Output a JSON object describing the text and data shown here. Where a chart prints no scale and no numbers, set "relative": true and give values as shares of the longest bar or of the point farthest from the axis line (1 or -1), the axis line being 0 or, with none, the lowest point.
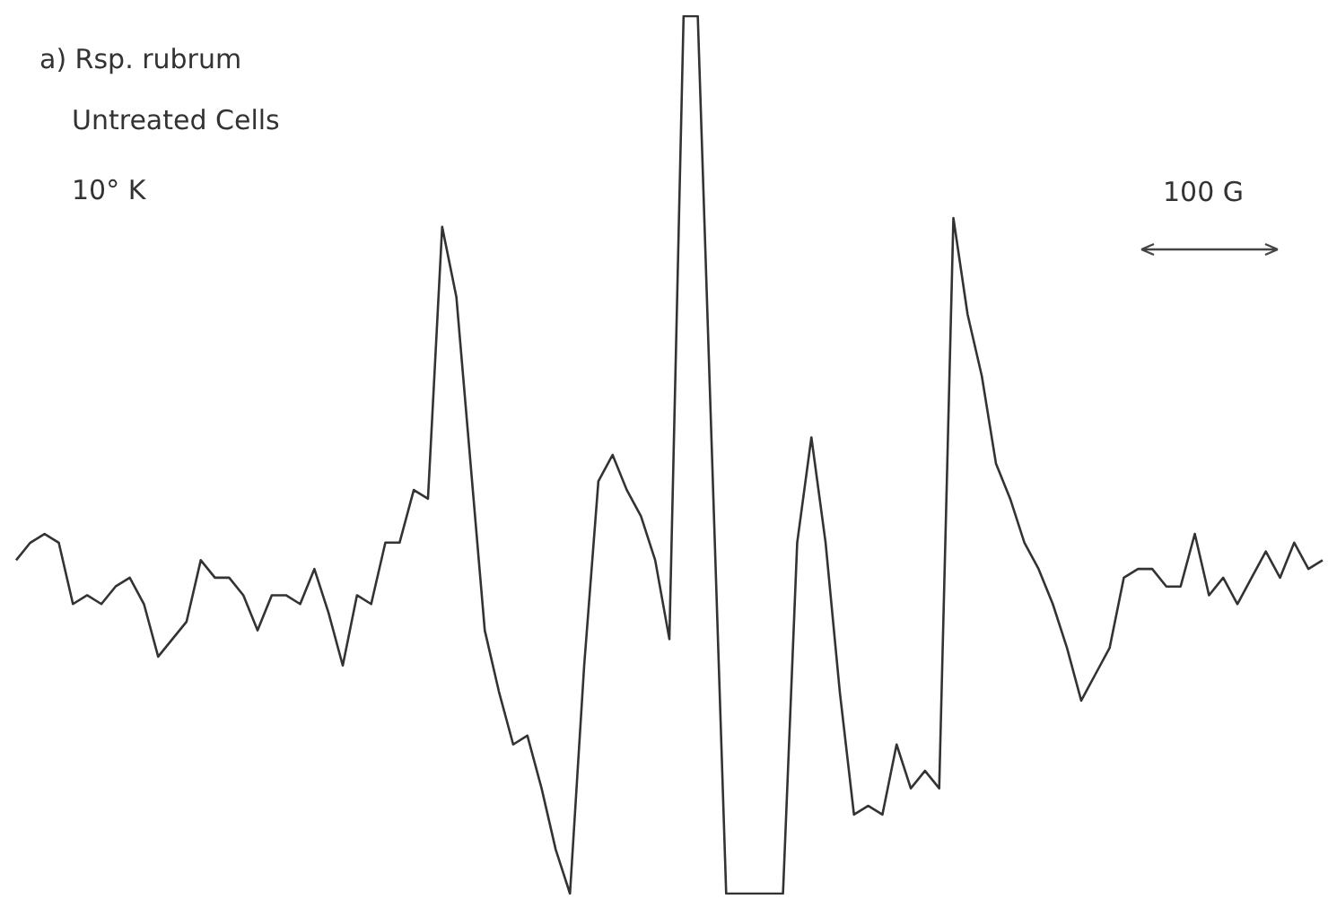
{
  "chart_data": {
    "type": "line",
    "relative": true,
    "color": "#333333",
    "marker": "none",
    "legend": false,
    "annotations": [
      "a) Rsp. rubrum",
      "Untreated Cells",
      "10° K",
      "100 G"
    ],
    "categories": [
      null,
      null,
      null,
      null,
      null,
      null,
      null,
      null,
      null,
      null,
      null,
      null,
      null,
      null,
      null,
      null,
      null,
      null,
      null,
      null,
      null,
      null,
      null,
      null,
      null,
      null,
      null,
      null,
      null,
      null,
      null,
      null,
      null,
      null,
      null,
      null,
      null,
      null,
      null,
      null,
      null,
      null,
      null,
      null,
      null,
      null,
      null,
      null,
      null,
      null,
      null,
      null,
      null,
      null,
      null,
      null,
      null,
      null,
      null,
      null,
      null,
      null,
      null,
      null,
      null,
      null,
      null,
      null,
      null,
      null,
      null,
      null,
      null,
      null,
      null,
      null,
      null,
      null,
      null,
      null,
      null,
      null,
      null,
      null,
      null,
      null,
      null,
      null,
      null,
      null,
      null,
      null,
      null
    ],
    "values": [
      0.38,
      0.4,
      0.41,
      0.4,
      0.33,
      0.34,
      0.33,
      0.35,
      0.36,
      0.33,
      0.27,
      0.29,
      0.31,
      0.38,
      0.36,
      0.36,
      0.34,
      0.3,
      0.34,
      0.34,
      0.33,
      0.37,
      0.32,
      0.26,
      0.34,
      0.33,
      0.4,
      0.4,
      0.46,
      0.45,
      0.76,
      0.68,
      0.49,
      0.3,
      0.23,
      0.17,
      0.18,
      0.12,
      0.05,
      0.0,
      0.26,
      0.47,
      0.5,
      0.46,
      0.43,
      0.38,
      0.29,
      1.0,
      1.0,
      0.5,
      0.0,
      0.0,
      0.0,
      0.0,
      0.0,
      0.4,
      0.52,
      0.4,
      0.23,
      0.09,
      0.1,
      0.09,
      0.17,
      0.12,
      0.14,
      0.12,
      0.77,
      0.66,
      0.59,
      0.49,
      0.45,
      0.4,
      0.37,
      0.33,
      0.28,
      0.22,
      0.25,
      0.28,
      0.36,
      0.37,
      0.37,
      0.35,
      0.35,
      0.41,
      0.34,
      0.36,
      0.33,
      0.36,
      0.39,
      0.36,
      0.4,
      0.37,
      0.38
    ]
  }
}
